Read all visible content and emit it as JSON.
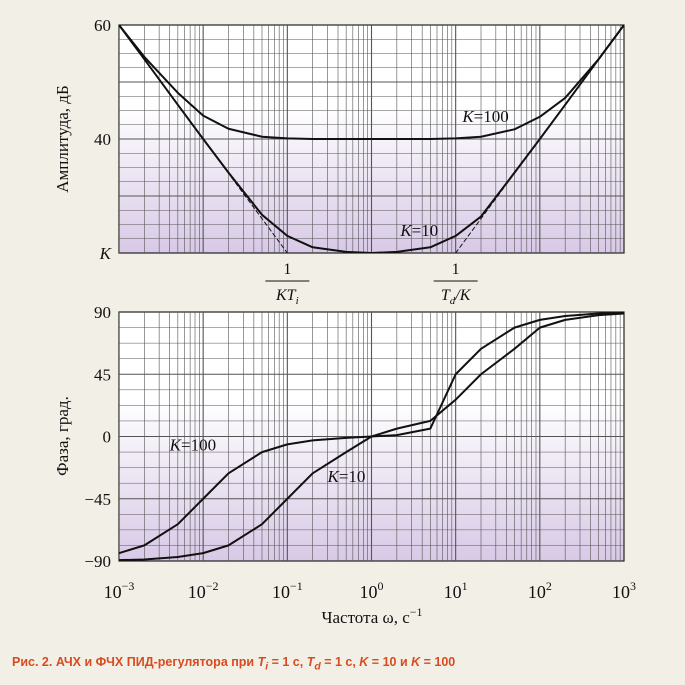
{
  "chart_data": [
    {
      "type": "line",
      "xscale": "log",
      "xlim": [
        0.001,
        1000
      ],
      "ylim": [
        20,
        60
      ],
      "ylabel": "Амплитуда, дБ",
      "yticks": [
        {
          "value": 60,
          "label": "60"
        },
        {
          "value": 40,
          "label": "40"
        },
        {
          "value": 20,
          "label": "K"
        }
      ],
      "grid": true,
      "series": [
        {
          "name": "K=100",
          "x": [
            0.001,
            0.002,
            0.005,
            0.01,
            0.02,
            0.05,
            0.1,
            0.2,
            0.5,
            1,
            2,
            5,
            10,
            20,
            50,
            100,
            200,
            500,
            1000
          ],
          "y": [
            60.0,
            54.4,
            48.1,
            44.1,
            41.8,
            40.4,
            40.1,
            40.0,
            40.0,
            40.0,
            40.0,
            40.0,
            40.1,
            40.4,
            41.7,
            43.9,
            47.2,
            54.0,
            60.0
          ]
        },
        {
          "name": "K=10",
          "x": [
            0.001,
            0.002,
            0.005,
            0.01,
            0.02,
            0.05,
            0.1,
            0.2,
            0.5,
            1,
            2,
            5,
            10,
            20,
            50,
            100,
            200,
            500,
            1000
          ],
          "y": [
            60.0,
            54.0,
            46.0,
            40.0,
            34.1,
            26.7,
            23.0,
            21.0,
            20.2,
            20.0,
            20.2,
            21.0,
            23.0,
            26.4,
            34.1,
            40.0,
            46.0,
            54.0,
            60.0
          ]
        },
        {
          "name": "asymptote-low",
          "dashed": true,
          "x": [
            0.001,
            0.1
          ],
          "y": [
            60,
            20
          ]
        },
        {
          "name": "asymptote-high",
          "dashed": true,
          "x": [
            10,
            1000
          ],
          "y": [
            20,
            60
          ]
        }
      ],
      "annotations": [
        {
          "text_italic": "K",
          "text": "=100",
          "x": 12,
          "y": 43
        },
        {
          "text_italic": "K",
          "text": "=10",
          "x": 2.2,
          "y": 23
        }
      ],
      "corner_labels": {
        "left": {
          "numerator": "1",
          "denominator": "KT",
          "subscript": "i",
          "x": 0.1
        },
        "right": {
          "numerator": "1",
          "denominator": "T",
          "subscript": "d",
          "denominator_tail": "/K",
          "x": 10
        }
      }
    },
    {
      "type": "line",
      "xscale": "log",
      "xlim": [
        0.001,
        1000
      ],
      "ylim": [
        -90,
        90
      ],
      "ylabel": "Фаза, град.",
      "xlabel": "Частота ω, с",
      "xlabel_sup": "−1",
      "yticks": [
        {
          "value": 90,
          "label": "90"
        },
        {
          "value": 45,
          "label": "45"
        },
        {
          "value": 0,
          "label": "0"
        },
        {
          "value": -45,
          "label": "−45"
        },
        {
          "value": -90,
          "label": "−90"
        }
      ],
      "xticks": [
        {
          "value": 0.001,
          "base": "10",
          "exp": "−3"
        },
        {
          "value": 0.01,
          "base": "10",
          "exp": "−2"
        },
        {
          "value": 0.1,
          "base": "10",
          "exp": "−1"
        },
        {
          "value": 1,
          "base": "10",
          "exp": "0"
        },
        {
          "value": 10,
          "base": "10",
          "exp": "1"
        },
        {
          "value": 100,
          "base": "10",
          "exp": "2"
        },
        {
          "value": 1000,
          "base": "10",
          "exp": "3"
        }
      ],
      "grid": true,
      "series": [
        {
          "name": "K=100",
          "x": [
            0.001,
            0.002,
            0.005,
            0.01,
            0.02,
            0.05,
            0.1,
            0.2,
            0.5,
            1,
            2,
            5,
            10,
            20,
            50,
            100,
            200,
            500,
            1000
          ],
          "y": [
            -84.3,
            -78.7,
            -63.4,
            -45.0,
            -26.6,
            -11.3,
            -5.7,
            -2.8,
            -1.0,
            0.0,
            1.0,
            5.7,
            45.0,
            63.4,
            78.7,
            84.3,
            87.1,
            88.9,
            89.4
          ]
        },
        {
          "name": "K=10",
          "x": [
            0.001,
            0.002,
            0.005,
            0.01,
            0.02,
            0.05,
            0.1,
            0.2,
            0.5,
            1,
            2,
            5,
            10,
            20,
            50,
            100,
            200,
            500,
            1000
          ],
          "y": [
            -89.4,
            -88.9,
            -87.1,
            -84.3,
            -78.7,
            -63.4,
            -45.0,
            -26.6,
            -11.3,
            0.0,
            5.7,
            11.3,
            26.6,
            45.0,
            63.4,
            78.7,
            84.3,
            87.7,
            88.9
          ]
        }
      ],
      "annotations": [
        {
          "text_italic": "K",
          "text": "=100",
          "x": 0.004,
          "y": -10
        },
        {
          "text_italic": "K",
          "text": "=10",
          "x": 0.3,
          "y": -33
        }
      ]
    }
  ],
  "caption": {
    "prefix": "Рис. 2. АЧХ и ФЧХ ПИД-регулятора при ",
    "ti_sym": "T",
    "ti_sub": "i",
    "ti_val": " = 1 с, ",
    "td_sym": "T",
    "td_sub": "d",
    "td_val": " = 1 с, ",
    "k1_sym": "K",
    "k1_val": " = 10 и ",
    "k2_sym": "K",
    "k2_val": " = 100"
  },
  "colors": {
    "background": "#f2f0e6",
    "plot_top": "#ffffff",
    "plot_bottom": "#d8c9e6",
    "grid": "#555555",
    "curve": "#111111",
    "caption": "#d94a1e"
  }
}
